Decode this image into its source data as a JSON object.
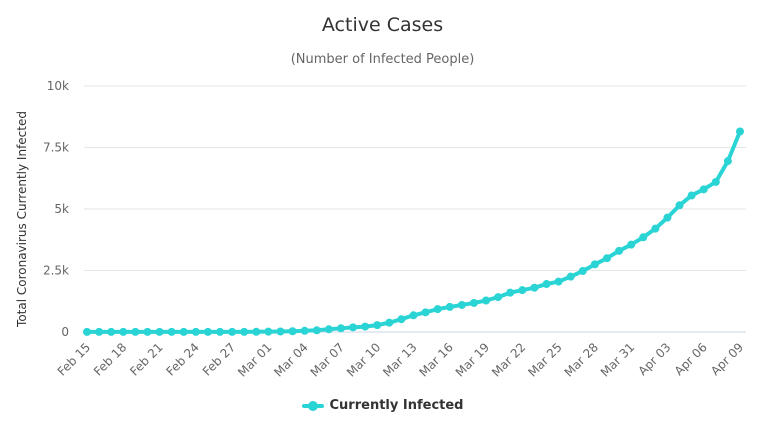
{
  "chart_data": {
    "type": "line",
    "title": "Active Cases",
    "subtitle": "(Number of Infected People)",
    "xlabel": "",
    "ylabel": "Total Coronavirus Currently Infected",
    "ylim": [
      0,
      10000
    ],
    "y_ticks": [
      0,
      2500,
      5000,
      7500,
      10000
    ],
    "y_tick_labels": [
      "0",
      "2.5k",
      "5k",
      "7.5k",
      "10k"
    ],
    "grid": "horizontal",
    "legend_position": "bottom-center",
    "x_tick_labels": [
      "Feb 15",
      "Feb 18",
      "Feb 21",
      "Feb 24",
      "Feb 27",
      "Mar 01",
      "Mar 04",
      "Mar 07",
      "Mar 10",
      "Mar 13",
      "Mar 16",
      "Mar 19",
      "Mar 22",
      "Mar 25",
      "Mar 28",
      "Mar 31",
      "Apr 03",
      "Apr 06",
      "Apr 09"
    ],
    "x": [
      "Feb 15",
      "Feb 16",
      "Feb 17",
      "Feb 18",
      "Feb 19",
      "Feb 20",
      "Feb 21",
      "Feb 22",
      "Feb 23",
      "Feb 24",
      "Feb 25",
      "Feb 26",
      "Feb 27",
      "Feb 28",
      "Feb 29",
      "Mar 01",
      "Mar 02",
      "Mar 03",
      "Mar 04",
      "Mar 05",
      "Mar 06",
      "Mar 07",
      "Mar 08",
      "Mar 09",
      "Mar 10",
      "Mar 11",
      "Mar 12",
      "Mar 13",
      "Mar 14",
      "Mar 15",
      "Mar 16",
      "Mar 17",
      "Mar 18",
      "Mar 19",
      "Mar 20",
      "Mar 21",
      "Mar 22",
      "Mar 23",
      "Mar 24",
      "Mar 25",
      "Mar 26",
      "Mar 27",
      "Mar 28",
      "Mar 29",
      "Mar 30",
      "Mar 31",
      "Apr 01",
      "Apr 02",
      "Apr 03",
      "Apr 04",
      "Apr 05",
      "Apr 06",
      "Apr 07",
      "Apr 08",
      "Apr 09"
    ],
    "series": [
      {
        "name": "Currently Infected",
        "color": "#2ad4d4",
        "values": [
          5,
          5,
          5,
          5,
          5,
          5,
          5,
          5,
          5,
          5,
          5,
          5,
          5,
          5,
          8,
          15,
          20,
          30,
          50,
          70,
          110,
          150,
          190,
          220,
          280,
          380,
          520,
          680,
          800,
          930,
          1020,
          1100,
          1180,
          1280,
          1420,
          1600,
          1700,
          1800,
          1950,
          2050,
          2250,
          2480,
          2750,
          3000,
          3300,
          3550,
          3850,
          4200,
          4650,
          5150,
          5550,
          5800,
          6100,
          6950,
          8150
        ]
      }
    ]
  }
}
